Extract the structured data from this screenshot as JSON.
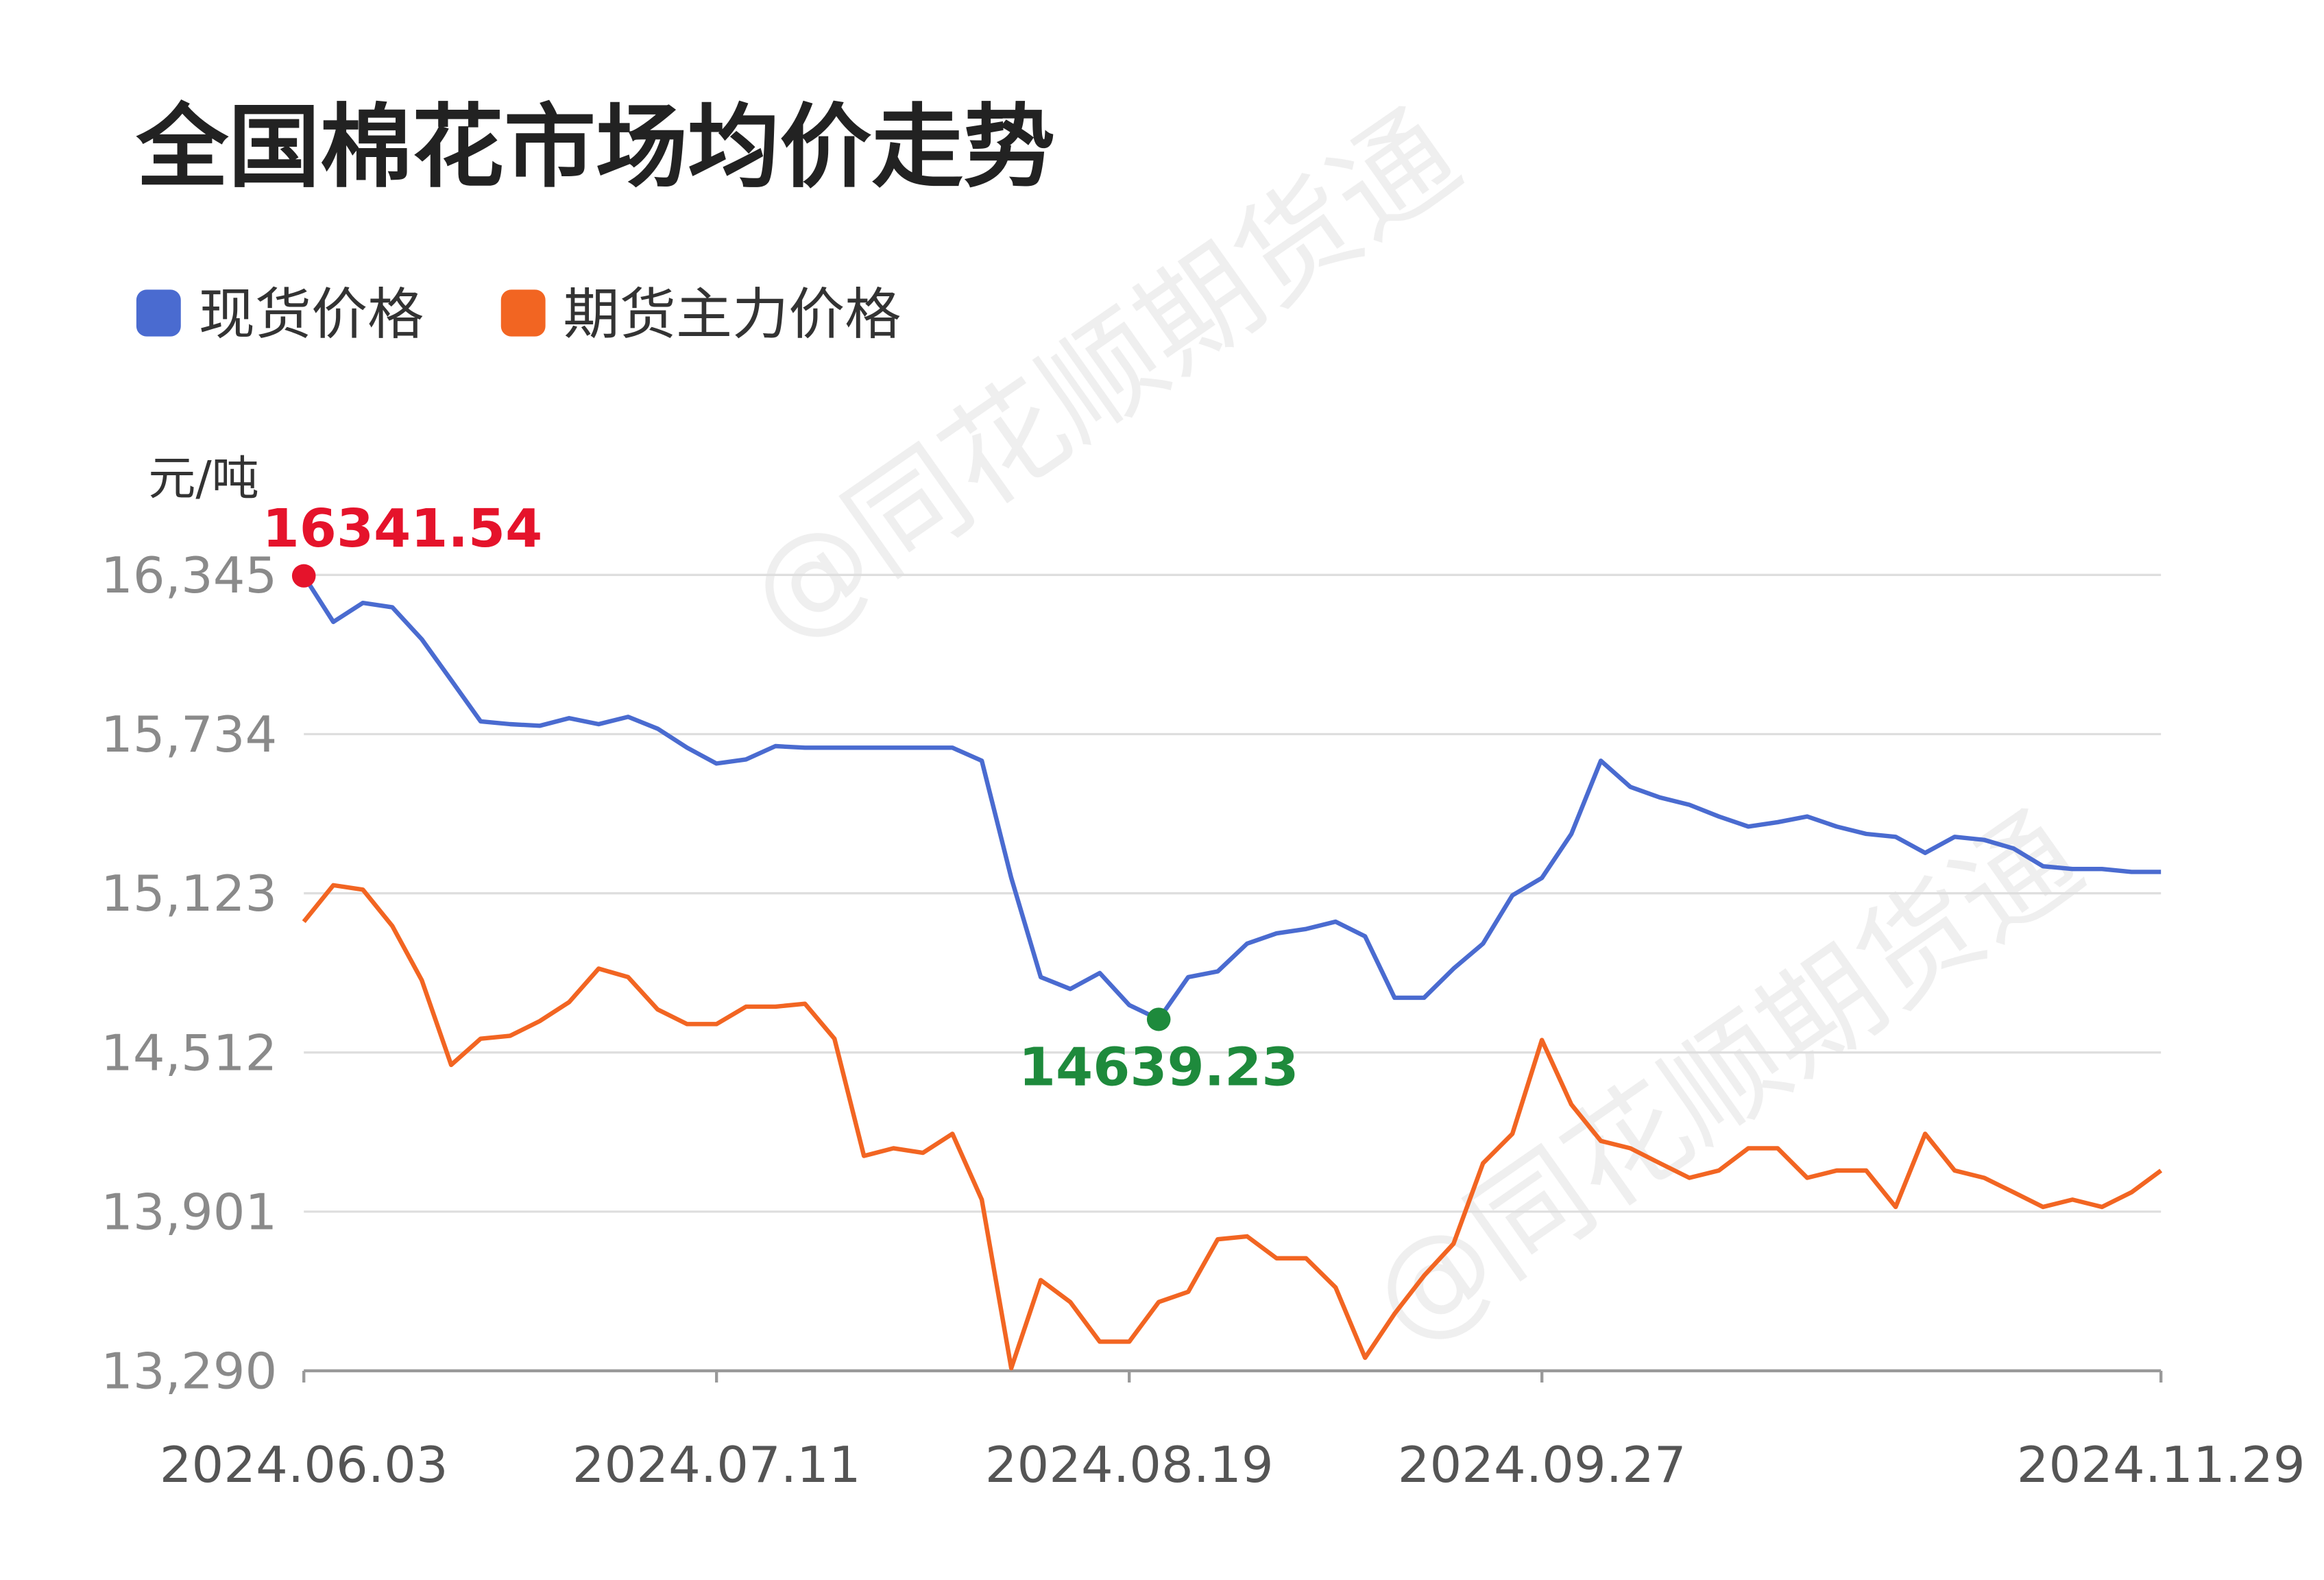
{
  "chart_data": {
    "type": "line",
    "title": "全国棉花市场均价走势",
    "y_label": "元/吨",
    "watermark": "@同花顺期货通",
    "legend": "top-left",
    "grid": true,
    "categories": [
      "2024.06.03",
      null,
      null,
      null,
      null,
      null,
      null,
      null,
      null,
      null,
      null,
      null,
      null,
      null,
      "2024.07.11",
      null,
      null,
      null,
      null,
      null,
      null,
      null,
      null,
      null,
      null,
      null,
      null,
      null,
      "2024.08.19",
      null,
      null,
      null,
      null,
      null,
      null,
      null,
      null,
      null,
      null,
      null,
      null,
      null,
      "2024.09.27",
      null,
      null,
      null,
      null,
      null,
      null,
      null,
      null,
      null,
      null,
      null,
      null,
      null,
      null,
      null,
      null,
      null,
      null,
      null,
      null,
      "2024.11.29"
    ],
    "ylim": [
      13290,
      16345
    ],
    "yticks": [
      {
        "value": 13290,
        "label": "13,290"
      },
      {
        "value": 13901,
        "label": "13,901"
      },
      {
        "value": 14512,
        "label": "14,512"
      },
      {
        "value": 15123,
        "label": "15,123"
      },
      {
        "value": 15734,
        "label": "15,734"
      },
      {
        "value": 16345,
        "label": "16,345"
      }
    ],
    "series": [
      {
        "name": "现货价格",
        "color": "#4a6bd0",
        "values": [
          16341.54,
          16165,
          16238,
          16221,
          16098,
          15941,
          15783,
          15772,
          15766,
          15795,
          15772,
          15800,
          15755,
          15682,
          15621,
          15637,
          15688,
          15682,
          15682,
          15682,
          15682,
          15682,
          15682,
          15632,
          15182,
          14801,
          14756,
          14817,
          14694,
          14639.23,
          14801,
          14823,
          14930,
          14969,
          14986,
          15014,
          14958,
          14722,
          14722,
          14834,
          14930,
          15115,
          15182,
          15351,
          15632,
          15531,
          15491,
          15463,
          15418,
          15379,
          15396,
          15418,
          15379,
          15351,
          15340,
          15278,
          15340,
          15328,
          15295,
          15227,
          15216,
          15216,
          15205,
          15205
        ],
        "value_labels": [
          "16341.54",
          null,
          null,
          null,
          null,
          null,
          null,
          null,
          null,
          null,
          null,
          null,
          null,
          null,
          null,
          null,
          null,
          null,
          null,
          null,
          null,
          null,
          null,
          null,
          null,
          null,
          null,
          null,
          null,
          "14639.23",
          null,
          null,
          null,
          null,
          null,
          null,
          null,
          null,
          null,
          null,
          null,
          null,
          null,
          null,
          null,
          null,
          null,
          null,
          null,
          null,
          null,
          null,
          null,
          null,
          null,
          null,
          null,
          null,
          null,
          null,
          null,
          null,
          null,
          null
        ]
      },
      {
        "name": "期货主力价格",
        "color": "#f26522",
        "values": [
          15014,
          15154,
          15137,
          14997,
          14789,
          14464,
          14565,
          14576,
          14632,
          14705,
          14834,
          14801,
          14677,
          14621,
          14621,
          14688,
          14688,
          14699,
          14565,
          14115,
          14144,
          14127,
          14200,
          13947,
          13300,
          13638,
          13554,
          13402,
          13402,
          13554,
          13593,
          13795,
          13806,
          13722,
          13722,
          13610,
          13340,
          13509,
          13655,
          13778,
          14087,
          14200,
          14560,
          14312,
          14172,
          14144,
          14087,
          14031,
          14059,
          14144,
          14144,
          14031,
          14059,
          14059,
          13919,
          14200,
          14059,
          14031,
          13975,
          13919,
          13947,
          13919,
          13975,
          14059
        ]
      }
    ]
  }
}
